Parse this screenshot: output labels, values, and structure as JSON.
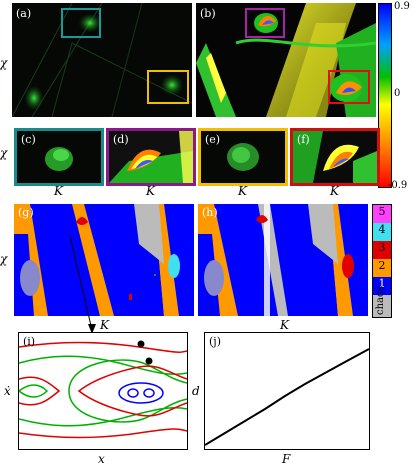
{
  "figure": {
    "top_row": {
      "panels": [
        {
          "label": "(a)"
        },
        {
          "label": "(b)"
        }
      ],
      "ylabel": "χ",
      "colorbar": {
        "max_label": "0.9",
        "min_label": "-0.9",
        "mid_label": "0",
        "colors": [
          "#0000ff",
          "#00a0ff",
          "#00c000",
          "#ffff00",
          "#ff8000",
          "#ff0000"
        ]
      }
    },
    "zoom_row": {
      "panels": [
        {
          "label": "(c)",
          "frame_color": "#1a8a8a"
        },
        {
          "label": "(d)",
          "frame_color": "#8a1a8a"
        },
        {
          "label": "(e)",
          "frame_color": "#f0c000"
        },
        {
          "label": "(f)",
          "frame_color": "#d01010"
        }
      ],
      "ylabel": "χ",
      "xlabel": "K"
    },
    "basin_row": {
      "panels": [
        {
          "label": "(g)"
        },
        {
          "label": "(h)"
        }
      ],
      "ylabel": "χ",
      "xlabel": "K",
      "legend": [
        {
          "label": "5",
          "color": "#ff40ff"
        },
        {
          "label": "4",
          "color": "#40e0f0"
        },
        {
          "label": "3",
          "color": "#e00000"
        },
        {
          "label": "2",
          "color": "#ff9900"
        },
        {
          "label": "1",
          "color": "#0000ff"
        },
        {
          "label": "chaos",
          "color": "#bbbbbb"
        }
      ]
    },
    "phase_panel": {
      "label": "(i)",
      "xlabel": "x",
      "ylabel": "ẋ"
    },
    "linear_panel": {
      "label": "(j)",
      "xlabel": "F",
      "ylabel": "d"
    }
  }
}
